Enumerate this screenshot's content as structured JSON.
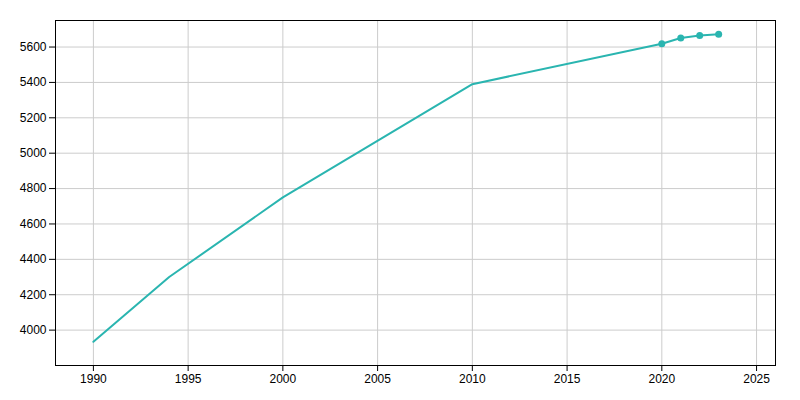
{
  "chart_data": {
    "type": "line",
    "x": [
      1990,
      1994,
      2000,
      2010,
      2020,
      2021,
      2022,
      2023
    ],
    "series": [
      {
        "type": "line",
        "color": "#2ab5b0",
        "values": [
          3934,
          4300,
          4750,
          5390,
          5619,
          5651,
          5665,
          5672
        ]
      },
      {
        "type": "scatter",
        "marker": "circle",
        "color": "#2ab5b0",
        "values": [
          null,
          null,
          null,
          null,
          5619,
          5651,
          5665,
          5672
        ]
      }
    ],
    "xlim": [
      1988,
      2026
    ],
    "ylim": [
      3800,
      5750
    ],
    "xticks": [
      1990,
      1995,
      2000,
      2005,
      2010,
      2015,
      2020,
      2025
    ],
    "yticks": [
      4000,
      4200,
      4400,
      4600,
      4800,
      5000,
      5200,
      5400,
      5600
    ],
    "grid": true
  }
}
